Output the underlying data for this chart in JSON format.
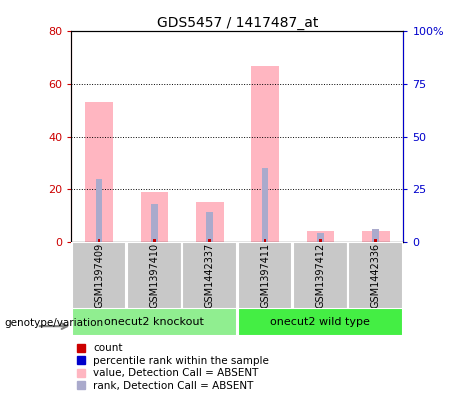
{
  "title": "GDS5457 / 1417487_at",
  "samples": [
    "GSM1397409",
    "GSM1397410",
    "GSM1442337",
    "GSM1397411",
    "GSM1397412",
    "GSM1442336"
  ],
  "groups": [
    {
      "label": "onecut2 knockout",
      "indices": [
        0,
        1,
        2
      ],
      "color": "#90EE90"
    },
    {
      "label": "onecut2 wild type",
      "indices": [
        3,
        4,
        5
      ],
      "color": "#44EE44"
    }
  ],
  "pink_bars": [
    53,
    19,
    15,
    67,
    4,
    4
  ],
  "blue_bars_right": [
    30,
    18,
    14,
    35,
    4,
    6
  ],
  "ylim_left": [
    0,
    80
  ],
  "ylim_right": [
    0,
    100
  ],
  "yticks_left": [
    0,
    20,
    40,
    60,
    80
  ],
  "yticks_right": [
    0,
    25,
    50,
    75,
    100
  ],
  "ytick_labels_left": [
    "0",
    "20",
    "40",
    "60",
    "80"
  ],
  "ytick_labels_right": [
    "0",
    "25",
    "50",
    "75",
    "100%"
  ],
  "left_axis_color": "#CC0000",
  "right_axis_color": "#0000CC",
  "pink_color": "#FFB6C1",
  "blue_color": "#AAAACC",
  "red_color": "#CC0000",
  "pink_bar_width": 0.5,
  "blue_bar_width": 0.12,
  "red_bar_width": 0.05,
  "legend_items": [
    {
      "color": "#CC0000",
      "label": "count",
      "square": true
    },
    {
      "color": "#0000CC",
      "label": "percentile rank within the sample",
      "square": true
    },
    {
      "color": "#FFB6C1",
      "label": "value, Detection Call = ABSENT",
      "square": true
    },
    {
      "color": "#AAAACC",
      "label": "rank, Detection Call = ABSENT",
      "square": true
    }
  ],
  "group_label": "genotype/variation",
  "sample_label_bg": "#C8C8C8",
  "group_label_color": "#888888"
}
